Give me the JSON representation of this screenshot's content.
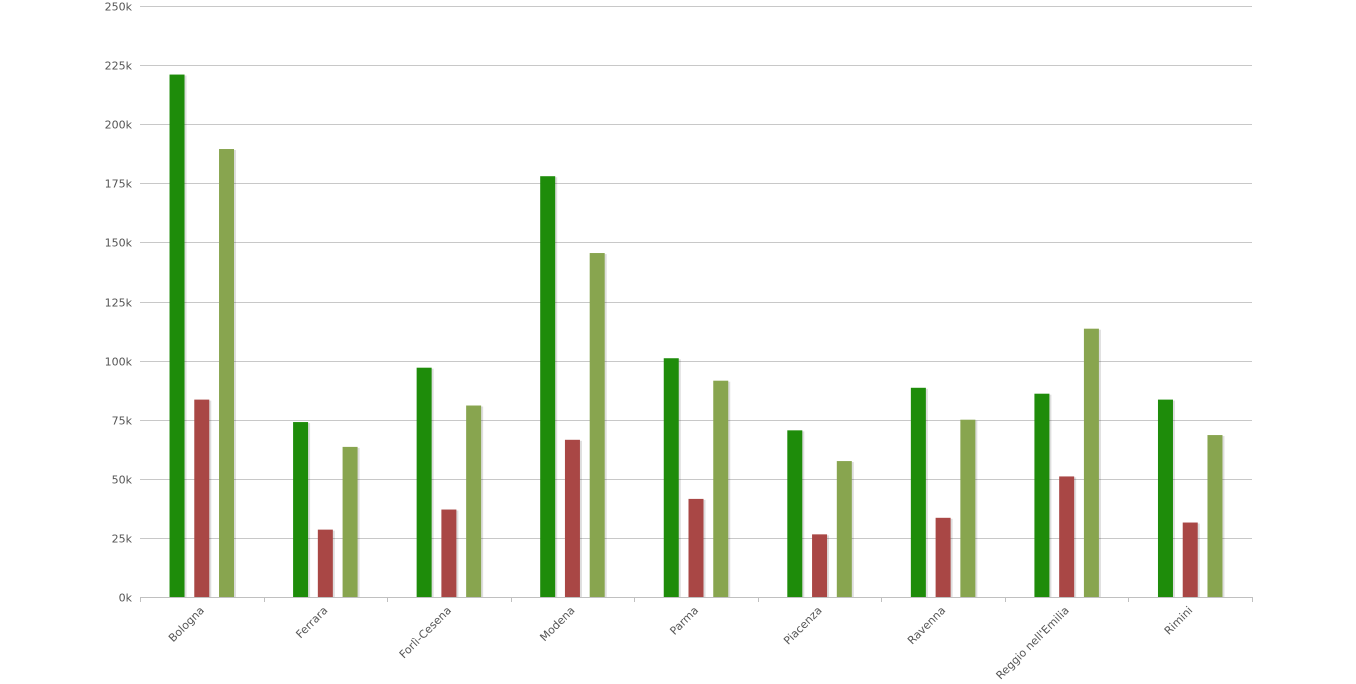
{
  "chart_data": {
    "type": "bar",
    "title": "",
    "xlabel": "",
    "ylabel": "",
    "ylim": [
      0,
      250000
    ],
    "yticks": [
      0,
      25000,
      50000,
      75000,
      100000,
      125000,
      150000,
      175000,
      200000,
      225000,
      250000
    ],
    "ytick_labels": [
      "0k",
      "25k",
      "50k",
      "75k",
      "100k",
      "125k",
      "150k",
      "175k",
      "200k",
      "225k",
      "250k"
    ],
    "categories": [
      "Bologna",
      "Ferrara",
      "Forlì-Cesena",
      "Modena",
      "Parma",
      "Piacenza",
      "Ravenna",
      "Reggio nell'Emilia",
      "Rimini"
    ],
    "series": [
      {
        "color": "#1e8c0a",
        "values": [
          221000,
          74000,
          97000,
          178000,
          101000,
          70500,
          88500,
          86000,
          83500
        ]
      },
      {
        "color": "#a94745",
        "values": [
          83500,
          28500,
          37000,
          66500,
          41500,
          26500,
          33500,
          51000,
          31500
        ]
      },
      {
        "color": "#88a54f",
        "values": [
          189500,
          63500,
          81000,
          145500,
          91500,
          57500,
          75000,
          113500,
          68500
        ]
      }
    ],
    "grid": true,
    "legend": "none"
  }
}
